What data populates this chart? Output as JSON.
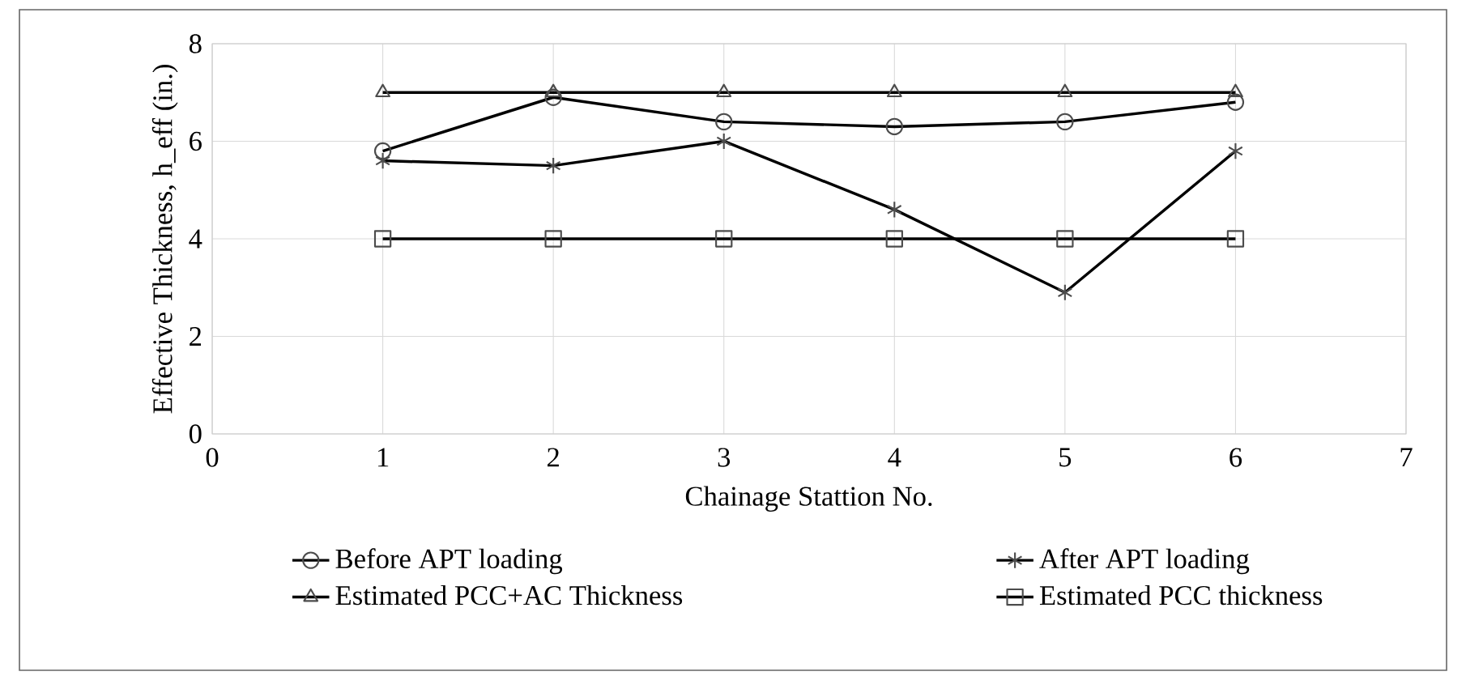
{
  "chart_data": {
    "type": "line",
    "xlabel": "Chainage Stattion No.",
    "ylabel": "Effective Thickness, h_eff (in.)",
    "x": [
      1,
      2,
      3,
      4,
      5,
      6
    ],
    "xlim": [
      0,
      7
    ],
    "xticks": [
      0,
      1,
      2,
      3,
      4,
      5,
      6,
      7
    ],
    "ylim": [
      0,
      8
    ],
    "yticks": [
      0,
      2,
      4,
      6,
      8
    ],
    "grid": true,
    "legend": "bottom",
    "line_style": "solid",
    "series": [
      {
        "name": "Before APT loading",
        "color": "#000000",
        "marker": "circle",
        "values": [
          5.8,
          6.9,
          6.4,
          6.3,
          6.4,
          6.8
        ]
      },
      {
        "name": "After APT loading",
        "color": "#000000",
        "marker": "cross",
        "values": [
          5.6,
          5.5,
          6.0,
          4.6,
          2.9,
          5.8
        ]
      },
      {
        "name": "Estimated PCC+AC Thickness",
        "color": "#000000",
        "marker": "triangle",
        "values": [
          7,
          7,
          7,
          7,
          7,
          7
        ]
      },
      {
        "name": "Estimated PCC thickness",
        "color": "#000000",
        "marker": "square",
        "values": [
          4,
          4,
          4,
          4,
          4,
          4
        ]
      }
    ]
  }
}
